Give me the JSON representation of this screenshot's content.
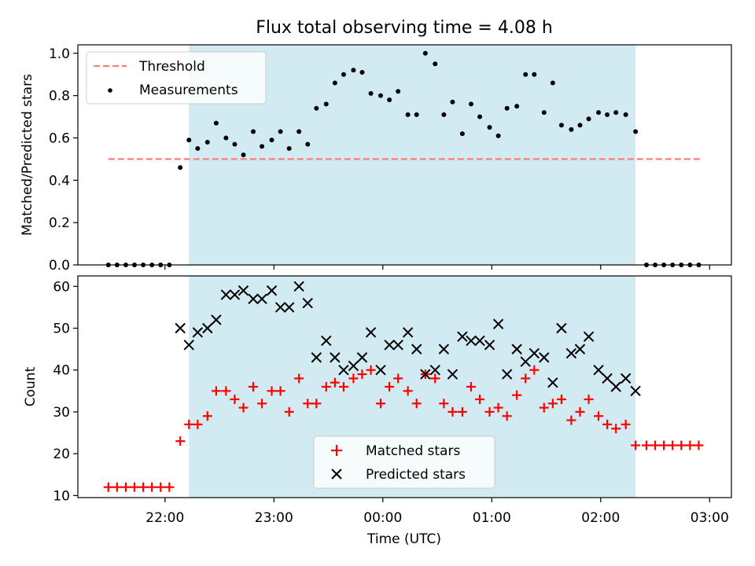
{
  "chart_data": [
    {
      "type": "scatter",
      "title": "Flux total observing time = 4.08 h",
      "xlabel": "",
      "ylabel": "Matched/Predicted stars",
      "ylim": [
        0,
        1.04
      ],
      "yticks": [
        "0.0",
        "0.2",
        "0.4",
        "0.6",
        "0.8",
        "1.0"
      ],
      "xlim": [
        -2.8,
        3.2
      ],
      "x_unit": "hours relative to 00:00 UTC",
      "shaded_interval": [
        -1.78,
        2.32
      ],
      "shade_color": "#add8e6",
      "legend_position": "upper-left",
      "series": [
        {
          "name": "Threshold",
          "style": "dashed-line",
          "color": "#ff7f7f",
          "x": [
            -2.52,
            2.92
          ],
          "y": [
            0.5,
            0.5
          ]
        },
        {
          "name": "Measurements",
          "style": "dot",
          "color": "#000000",
          "x": [
            -2.52,
            -2.44,
            -2.36,
            -2.28,
            -2.2,
            -2.12,
            -2.04,
            -1.96,
            -1.86,
            -1.78,
            -1.7,
            -1.61,
            -1.53,
            -1.44,
            -1.36,
            -1.28,
            -1.19,
            -1.11,
            -1.02,
            -0.94,
            -0.86,
            -0.77,
            -0.69,
            -0.61,
            -0.52,
            -0.44,
            -0.36,
            -0.27,
            -0.19,
            -0.11,
            -0.02,
            0.06,
            0.14,
            0.23,
            0.31,
            0.39,
            0.48,
            0.56,
            0.64,
            0.73,
            0.81,
            0.89,
            0.98,
            1.06,
            1.14,
            1.23,
            1.31,
            1.39,
            1.48,
            1.56,
            1.64,
            1.73,
            1.81,
            1.89,
            1.98,
            2.06,
            2.14,
            2.23,
            2.32,
            2.42,
            2.5,
            2.58,
            2.66,
            2.74,
            2.82,
            2.9
          ],
          "y": [
            0.0,
            0.0,
            0.0,
            0.0,
            0.0,
            0.0,
            0.0,
            0.0,
            0.46,
            0.59,
            0.55,
            0.58,
            0.67,
            0.6,
            0.57,
            0.52,
            0.63,
            0.56,
            0.59,
            0.63,
            0.55,
            0.63,
            0.57,
            0.74,
            0.76,
            0.86,
            0.9,
            0.92,
            0.91,
            0.81,
            0.8,
            0.78,
            0.82,
            0.71,
            0.71,
            1.0,
            0.95,
            0.71,
            0.77,
            0.62,
            0.76,
            0.7,
            0.65,
            0.61,
            0.74,
            0.75,
            0.9,
            0.9,
            0.72,
            0.86,
            0.66,
            0.64,
            0.66,
            0.69,
            0.72,
            0.71,
            0.72,
            0.71,
            0.63,
            0.0,
            0.0,
            0.0,
            0.0,
            0.0,
            0.0,
            0.0
          ]
        }
      ]
    },
    {
      "type": "scatter",
      "title": "",
      "xlabel": "Time (UTC)",
      "ylabel": "Count",
      "ylim": [
        9.5,
        62.5
      ],
      "yticks": [
        "10",
        "20",
        "30",
        "40",
        "50",
        "60"
      ],
      "xlim": [
        -2.8,
        3.2
      ],
      "x_unit": "hours relative to 00:00 UTC",
      "xticks": [
        {
          "value": -2,
          "label": "22:00"
        },
        {
          "value": -1,
          "label": "23:00"
        },
        {
          "value": 0,
          "label": "00:00"
        },
        {
          "value": 1,
          "label": "01:00"
        },
        {
          "value": 2,
          "label": "02:00"
        },
        {
          "value": 3,
          "label": "03:00"
        }
      ],
      "shaded_interval": [
        -1.78,
        2.32
      ],
      "shade_color": "#add8e6",
      "legend_position": "lower-center",
      "series": [
        {
          "name": "Matched stars",
          "marker": "plus",
          "color": "#ff0000",
          "x": [
            -2.52,
            -2.44,
            -2.36,
            -2.28,
            -2.2,
            -2.12,
            -2.04,
            -1.96,
            -1.86,
            -1.78,
            -1.7,
            -1.61,
            -1.53,
            -1.44,
            -1.36,
            -1.28,
            -1.19,
            -1.11,
            -1.02,
            -0.94,
            -0.86,
            -0.77,
            -0.69,
            -0.61,
            -0.52,
            -0.44,
            -0.36,
            -0.27,
            -0.19,
            -0.11,
            -0.02,
            0.06,
            0.14,
            0.23,
            0.31,
            0.39,
            0.48,
            0.56,
            0.64,
            0.73,
            0.81,
            0.89,
            0.98,
            1.06,
            1.14,
            1.23,
            1.31,
            1.39,
            1.48,
            1.56,
            1.64,
            1.73,
            1.81,
            1.89,
            1.98,
            2.06,
            2.14,
            2.23,
            2.32,
            2.42,
            2.5,
            2.58,
            2.66,
            2.74,
            2.82,
            2.9
          ],
          "y": [
            12,
            12,
            12,
            12,
            12,
            12,
            12,
            12,
            23,
            27,
            27,
            29,
            35,
            35,
            33,
            31,
            36,
            32,
            35,
            35,
            30,
            38,
            32,
            32,
            36,
            37,
            36,
            38,
            39,
            40,
            32,
            36,
            38,
            35,
            32,
            39,
            38,
            32,
            30,
            30,
            36,
            33,
            30,
            31,
            29,
            34,
            38,
            40,
            31,
            32,
            33,
            28,
            30,
            33,
            29,
            27,
            26,
            27,
            22,
            22,
            22,
            22,
            22,
            22,
            22,
            22
          ]
        },
        {
          "name": "Predicted stars",
          "marker": "x",
          "color": "#000000",
          "x": [
            -1.86,
            -1.78,
            -1.7,
            -1.61,
            -1.53,
            -1.44,
            -1.36,
            -1.28,
            -1.19,
            -1.11,
            -1.02,
            -0.94,
            -0.86,
            -0.77,
            -0.69,
            -0.61,
            -0.52,
            -0.44,
            -0.36,
            -0.27,
            -0.19,
            -0.11,
            -0.02,
            0.06,
            0.14,
            0.23,
            0.31,
            0.39,
            0.48,
            0.56,
            0.64,
            0.73,
            0.81,
            0.89,
            0.98,
            1.06,
            1.14,
            1.23,
            1.31,
            1.39,
            1.48,
            1.56,
            1.64,
            1.73,
            1.81,
            1.89,
            1.98,
            2.06,
            2.14,
            2.23,
            2.32
          ],
          "y": [
            50,
            46,
            49,
            50,
            52,
            58,
            58,
            59,
            57,
            57,
            59,
            55,
            55,
            60,
            56,
            43,
            47,
            43,
            40,
            41,
            43,
            49,
            40,
            46,
            46,
            49,
            45,
            39,
            40,
            45,
            39,
            48,
            47,
            47,
            46,
            51,
            39,
            45,
            42,
            44,
            43,
            37,
            50,
            44,
            45,
            48,
            40,
            38,
            36,
            38,
            35
          ]
        }
      ]
    }
  ]
}
